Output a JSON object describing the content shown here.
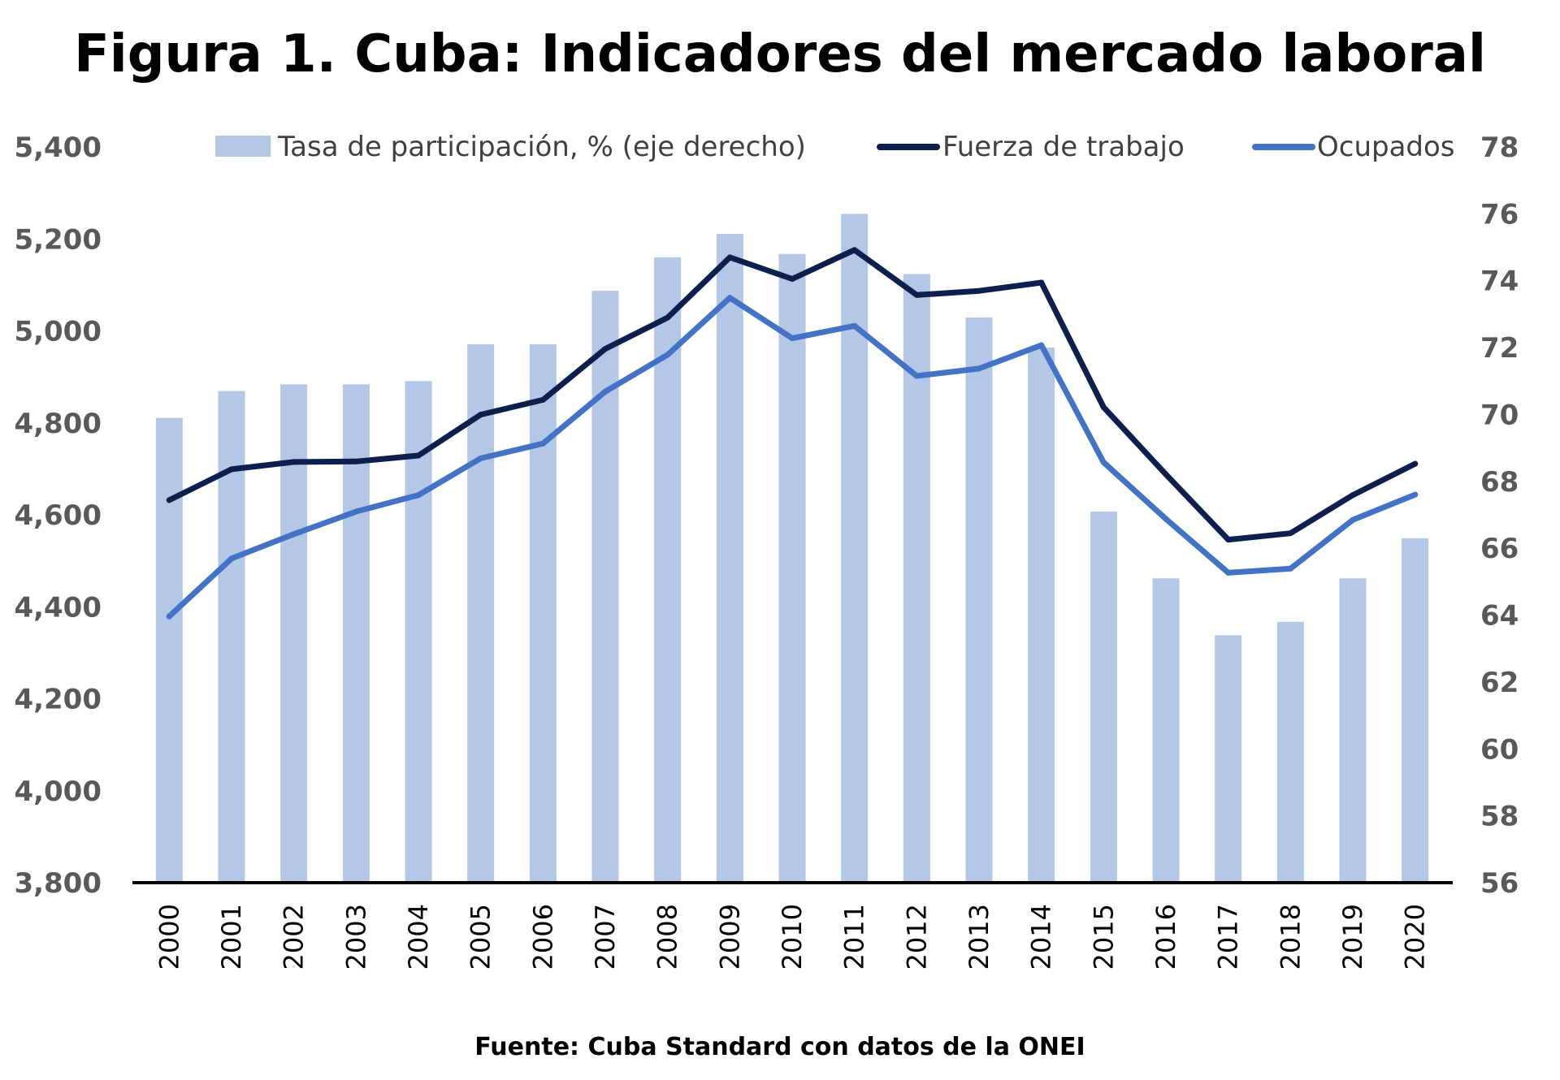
{
  "chart_data": {
    "type": "bar",
    "title": "Figura 1. Cuba: Indicadores del mercado laboral",
    "source": "Fuente: Cuba Standard con datos de la ONEI",
    "categories": [
      "2000",
      "2001",
      "2002",
      "2003",
      "2004",
      "2005",
      "2006",
      "2007",
      "2008",
      "2009",
      "2010",
      "2011",
      "2012",
      "2013",
      "2014",
      "2015",
      "2016",
      "2017",
      "2018",
      "2019",
      "2020"
    ],
    "left_axis": {
      "ylim": [
        3800,
        5400
      ],
      "ticks": [
        "3,800",
        "4,000",
        "4,200",
        "4,400",
        "4,600",
        "4,800",
        "5,000",
        "5,200",
        "5,400"
      ]
    },
    "right_axis": {
      "ylim": [
        56,
        78
      ],
      "ticks": [
        "56",
        "58",
        "60",
        "62",
        "64",
        "66",
        "68",
        "70",
        "72",
        "74",
        "76",
        "78"
      ]
    },
    "series": [
      {
        "name": "Tasa de participación, % (eje derecho)",
        "type": "bar",
        "axis": "right",
        "color": "#b4c7e7",
        "values": [
          69.9,
          70.7,
          70.9,
          70.9,
          71.0,
          72.1,
          72.1,
          73.7,
          74.7,
          75.4,
          74.8,
          76.0,
          74.2,
          72.9,
          72.0,
          67.1,
          65.1,
          63.4,
          63.8,
          65.1,
          66.3
        ]
      },
      {
        "name": "Fuerza de trabajo",
        "type": "line",
        "axis": "left",
        "color": "#0e1f4d",
        "values": [
          4632,
          4699,
          4715,
          4716,
          4729,
          4818,
          4850,
          4961,
          5029,
          5160,
          5113,
          5176,
          5078,
          5087,
          5105,
          4834,
          4688,
          4546,
          4560,
          4643,
          4711
        ]
      },
      {
        "name": "Ocupados",
        "type": "line",
        "axis": "left",
        "color": "#4472c4",
        "values": [
          4379,
          4505,
          4558,
          4607,
          4643,
          4723,
          4755,
          4868,
          4948,
          5072,
          4984,
          5011,
          4902,
          4918,
          4969,
          4714,
          4591,
          4474,
          4483,
          4589,
          4644
        ]
      }
    ]
  }
}
